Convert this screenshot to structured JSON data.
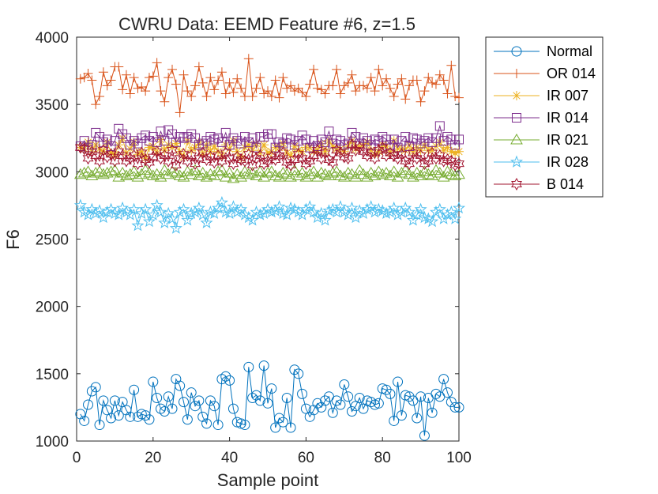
{
  "chart_data": {
    "type": "line",
    "title": "CWRU Data: EEMD Feature #6, z=1.5",
    "xlabel": "Sample point",
    "ylabel": "F6",
    "xlim": [
      0,
      100
    ],
    "ylim": [
      1000,
      4000
    ],
    "xticks": [
      "0",
      "20",
      "40",
      "60",
      "80",
      "100"
    ],
    "yticks": [
      "1000",
      "1500",
      "2000",
      "2500",
      "3000",
      "3500",
      "4000"
    ],
    "grid": false,
    "legend_position": "outside-right",
    "x": [
      1,
      2,
      3,
      4,
      5,
      6,
      7,
      8,
      9,
      10,
      11,
      12,
      13,
      14,
      15,
      16,
      17,
      18,
      19,
      20,
      21,
      22,
      23,
      24,
      25,
      26,
      27,
      28,
      29,
      30,
      31,
      32,
      33,
      34,
      35,
      36,
      37,
      38,
      39,
      40,
      41,
      42,
      43,
      44,
      45,
      46,
      47,
      48,
      49,
      50,
      51,
      52,
      53,
      54,
      55,
      56,
      57,
      58,
      59,
      60,
      61,
      62,
      63,
      64,
      65,
      66,
      67,
      68,
      69,
      70,
      71,
      72,
      73,
      74,
      75,
      76,
      77,
      78,
      79,
      80,
      81,
      82,
      83,
      84,
      85,
      86,
      87,
      88,
      89,
      90,
      91,
      92,
      93,
      94,
      95,
      96,
      97,
      98,
      99,
      100
    ],
    "series": [
      {
        "name": "Normal",
        "color": "#0072BD",
        "marker": "circle",
        "values": [
          1200,
          1150,
          1270,
          1370,
          1400,
          1120,
          1300,
          1230,
          1170,
          1300,
          1190,
          1290,
          1230,
          1180,
          1380,
          1180,
          1200,
          1190,
          1160,
          1440,
          1320,
          1240,
          1220,
          1330,
          1240,
          1460,
          1410,
          1290,
          1160,
          1360,
          1260,
          1300,
          1180,
          1130,
          1300,
          1260,
          1120,
          1460,
          1480,
          1450,
          1240,
          1140,
          1130,
          1120,
          1550,
          1320,
          1340,
          1300,
          1560,
          1280,
          1390,
          1100,
          1170,
          1140,
          1320,
          1100,
          1530,
          1500,
          1350,
          1240,
          1180,
          1230,
          1280,
          1250,
          1300,
          1330,
          1210,
          1300,
          1270,
          1420,
          1330,
          1220,
          1260,
          1320,
          1240,
          1300,
          1290,
          1270,
          1280,
          1390,
          1380,
          1350,
          1150,
          1440,
          1190,
          1340,
          1330,
          1300,
          1170,
          1330,
          1040,
          1320,
          1210,
          1350,
          1330,
          1460,
          1360,
          1290,
          1250,
          1250
        ]
      },
      {
        "name": "OR 014",
        "color": "#D95319",
        "marker": "plus",
        "values": [
          3690,
          3700,
          3730,
          3680,
          3500,
          3560,
          3740,
          3640,
          3680,
          3780,
          3780,
          3610,
          3720,
          3580,
          3700,
          3620,
          3630,
          3600,
          3700,
          3710,
          3810,
          3600,
          3520,
          3700,
          3760,
          3650,
          3440,
          3720,
          3600,
          3560,
          3640,
          3780,
          3660,
          3560,
          3700,
          3610,
          3680,
          3740,
          3580,
          3660,
          3590,
          3690,
          3620,
          3560,
          3840,
          3560,
          3620,
          3700,
          3580,
          3600,
          3560,
          3680,
          3550,
          3700,
          3620,
          3640,
          3600,
          3620,
          3590,
          3560,
          3650,
          3760,
          3620,
          3610,
          3580,
          3640,
          3640,
          3760,
          3580,
          3640,
          3660,
          3720,
          3600,
          3640,
          3640,
          3620,
          3700,
          3600,
          3760,
          3640,
          3690,
          3620,
          3560,
          3650,
          3690,
          3540,
          3640,
          3680,
          3680,
          3520,
          3600,
          3700,
          3660,
          3650,
          3720,
          3680,
          3580,
          3790,
          3560,
          3550
        ]
      },
      {
        "name": "IR 007",
        "color": "#EDB120",
        "marker": "star",
        "values": [
          3180,
          3170,
          3220,
          3150,
          3200,
          3170,
          3150,
          3220,
          3140,
          3130,
          3200,
          3250,
          3140,
          3170,
          3220,
          3130,
          3150,
          3100,
          3180,
          3190,
          3140,
          3240,
          3160,
          3200,
          3180,
          3210,
          3150,
          3110,
          3230,
          3160,
          3180,
          3220,
          3130,
          3200,
          3150,
          3190,
          3150,
          3120,
          3200,
          3170,
          3230,
          3150,
          3100,
          3180,
          3200,
          3160,
          3210,
          3140,
          3200,
          3140,
          3150,
          3180,
          3180,
          3210,
          3140,
          3120,
          3190,
          3160,
          3150,
          3180,
          3180,
          3150,
          3160,
          3210,
          3150,
          3230,
          3190,
          3170,
          3170,
          3150,
          3190,
          3230,
          3170,
          3180,
          3200,
          3220,
          3160,
          3130,
          3150,
          3200,
          3190,
          3140,
          3230,
          3170,
          3170,
          3160,
          3200,
          3150,
          3180,
          3160,
          3200,
          3160,
          3160,
          3190,
          3220,
          3160,
          3180,
          3150,
          3140,
          3150
        ]
      },
      {
        "name": "IR 014",
        "color": "#7E2F8E",
        "marker": "square",
        "values": [
          3190,
          3230,
          3180,
          3200,
          3290,
          3260,
          3220,
          3240,
          3190,
          3230,
          3320,
          3280,
          3250,
          3200,
          3230,
          3210,
          3250,
          3270,
          3230,
          3260,
          3220,
          3300,
          3230,
          3310,
          3280,
          3220,
          3260,
          3250,
          3260,
          3280,
          3250,
          3200,
          3210,
          3230,
          3260,
          3240,
          3250,
          3220,
          3290,
          3200,
          3250,
          3230,
          3210,
          3260,
          3220,
          3250,
          3180,
          3260,
          3260,
          3280,
          3280,
          3180,
          3220,
          3210,
          3250,
          3240,
          3200,
          3230,
          3270,
          3240,
          3180,
          3230,
          3190,
          3240,
          3220,
          3300,
          3210,
          3240,
          3230,
          3200,
          3210,
          3290,
          3260,
          3210,
          3250,
          3230,
          3200,
          3240,
          3230,
          3260,
          3240,
          3200,
          3240,
          3180,
          3230,
          3260,
          3190,
          3250,
          3240,
          3210,
          3230,
          3250,
          3220,
          3250,
          3340,
          3230,
          3260,
          3240,
          3200,
          3240
        ]
      },
      {
        "name": "IR 021",
        "color": "#77AC30",
        "marker": "triangle",
        "values": [
          2980,
          2990,
          3000,
          2970,
          2990,
          3000,
          2980,
          2990,
          3000,
          3010,
          2960,
          2990,
          2970,
          2980,
          3000,
          2960,
          2980,
          3010,
          2990,
          2970,
          2980,
          2960,
          3010,
          2980,
          3000,
          2990,
          2970,
          2960,
          3000,
          2980,
          3010,
          2970,
          2990,
          2960,
          2980,
          2970,
          3000,
          3010,
          2960,
          2990,
          2950,
          2980,
          2960,
          3000,
          2980,
          2990,
          2970,
          3000,
          2960,
          2990,
          3000,
          2970,
          2960,
          2990,
          2980,
          2960,
          3010,
          2970,
          2990,
          2960,
          2980,
          3000,
          2960,
          2990,
          2980,
          2970,
          2990,
          3000,
          2970,
          2960,
          2990,
          2980,
          2960,
          3010,
          2980,
          2960,
          2990,
          2970,
          3000,
          2980,
          2990,
          2970,
          3000,
          2960,
          2990,
          3010,
          2980,
          2960,
          2990,
          2970,
          3000,
          2980,
          2970,
          3010,
          2990,
          2960,
          3000,
          2980,
          2970,
          2980
        ]
      },
      {
        "name": "IR 028",
        "color": "#4DBEEE",
        "marker": "pentagram",
        "values": [
          2750,
          2700,
          2680,
          2720,
          2690,
          2710,
          2660,
          2700,
          2720,
          2690,
          2680,
          2730,
          2700,
          2680,
          2720,
          2600,
          2690,
          2720,
          2630,
          2680,
          2750,
          2700,
          2620,
          2690,
          2650,
          2580,
          2700,
          2720,
          2640,
          2690,
          2700,
          2730,
          2680,
          2620,
          2700,
          2690,
          2730,
          2770,
          2700,
          2690,
          2740,
          2700,
          2720,
          2680,
          2660,
          2640,
          2700,
          2680,
          2690,
          2720,
          2700,
          2710,
          2740,
          2690,
          2680,
          2730,
          2720,
          2700,
          2680,
          2720,
          2740,
          2700,
          2660,
          2690,
          2640,
          2710,
          2720,
          2700,
          2740,
          2700,
          2680,
          2730,
          2660,
          2710,
          2690,
          2720,
          2740,
          2700,
          2720,
          2710,
          2690,
          2700,
          2730,
          2680,
          2700,
          2730,
          2700,
          2640,
          2680,
          2720,
          2660,
          2650,
          2630,
          2700,
          2720,
          2650,
          2680,
          2700,
          2650,
          2730
        ]
      },
      {
        "name": "B 014",
        "color": "#A2142F",
        "marker": "hexagram",
        "values": [
          3180,
          3170,
          3100,
          3150,
          3120,
          3080,
          3160,
          3110,
          3130,
          3080,
          3150,
          3120,
          3080,
          3100,
          3120,
          3060,
          3140,
          3090,
          3070,
          3110,
          3150,
          3100,
          3120,
          3080,
          3160,
          3050,
          3100,
          3130,
          3080,
          3120,
          3060,
          3100,
          3140,
          3090,
          3110,
          3070,
          3120,
          3080,
          3140,
          3100,
          3060,
          3110,
          3090,
          3080,
          3130,
          3050,
          3100,
          3120,
          3060,
          3080,
          3110,
          3090,
          3120,
          3140,
          3070,
          3050,
          3090,
          3130,
          3100,
          3060,
          3080,
          3120,
          3160,
          3100,
          3140,
          3090,
          3070,
          3160,
          3140,
          3110,
          3100,
          3200,
          3160,
          3180,
          3150,
          3120,
          3140,
          3100,
          3160,
          3180,
          3120,
          3140,
          3120,
          3100,
          3130,
          3080,
          3060,
          3140,
          3100,
          3120,
          3060,
          3080,
          3140,
          3100,
          3120,
          3080,
          3090,
          3080,
          3050,
          3060
        ]
      }
    ]
  }
}
